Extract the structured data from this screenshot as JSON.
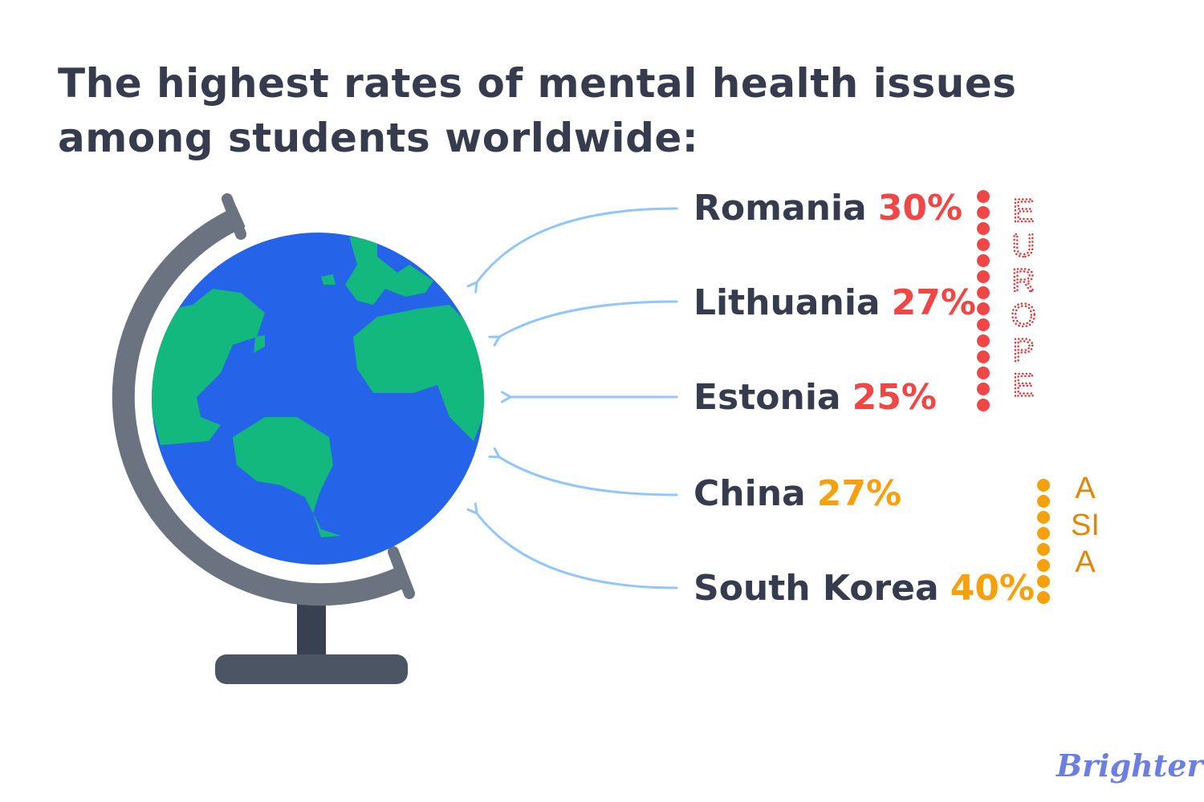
{
  "title": "The highest rates of mental health issues among students worldwide:",
  "colors": {
    "europe": "#f04646",
    "asia": "#f5a10f",
    "arrow": "#93c5fd",
    "ocean": "#2563e8",
    "land": "#12b87d",
    "text": "#363c4e"
  },
  "items": [
    {
      "country": "Romania",
      "value": "30%",
      "region": "Europe"
    },
    {
      "country": "Lithuania",
      "value": "27%",
      "region": "Europe"
    },
    {
      "country": "Estonia",
      "value": "25%",
      "region": "Europe"
    },
    {
      "country": "China",
      "value": "27%",
      "region": "Asia"
    },
    {
      "country": "South Korea",
      "value": "40%",
      "region": "Asia"
    }
  ],
  "regions": {
    "europe": "EUROPE",
    "asia": "ASIA"
  },
  "logo": "Brighterly",
  "icons": {
    "globe": "globe-icon",
    "arrow": "arrow-left-icon"
  }
}
